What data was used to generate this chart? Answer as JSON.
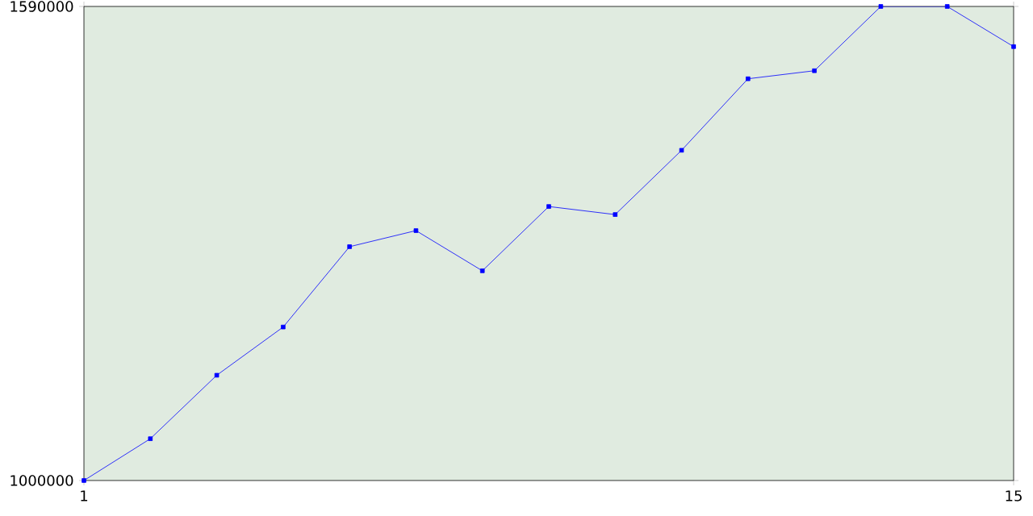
{
  "chart_data": {
    "type": "line",
    "x": [
      1,
      2,
      3,
      4,
      5,
      6,
      7,
      8,
      9,
      10,
      11,
      12,
      13,
      14,
      15
    ],
    "series": [
      {
        "color": "#0000ff",
        "values": [
          1000000,
          1052000,
          1131000,
          1191000,
          1291000,
          1311000,
          1261000,
          1341000,
          1331000,
          1411000,
          1500000,
          1510000,
          1590000,
          1590000,
          1540000
        ]
      }
    ],
    "xlim": [
      1,
      15
    ],
    "xticks": [
      1,
      15
    ],
    "ylim": [
      1000000,
      1590000
    ],
    "yticks": [
      1000000,
      1590000
    ],
    "marker": "square"
  }
}
